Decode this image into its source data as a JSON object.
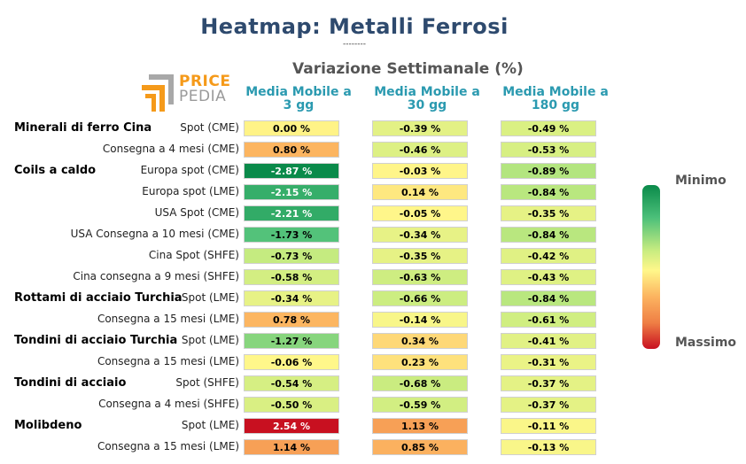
{
  "title": "Heatmap: Metalli Ferrosi",
  "title_separator": "--------",
  "subtitle": "Variazione Settimanale (%)",
  "logo": {
    "line1": "PRICE",
    "line2": "PEDIA"
  },
  "legend": {
    "top_label": "Minimo",
    "bottom_label": "Massimo"
  },
  "chart_data": {
    "type": "heatmap",
    "columns": [
      {
        "line1": "Media Mobile a",
        "line2": "3 gg"
      },
      {
        "line1": "Media Mobile a",
        "line2": "30 gg"
      },
      {
        "line1": "Media Mobile a",
        "line2": "180 gg"
      }
    ],
    "colorscale": {
      "low_color": "#0a8a4a",
      "mid_color": "#fff78a",
      "high_color": "#c81020"
    },
    "rows": [
      {
        "group": "Minerali di ferro Cina",
        "label": "Spot (CME)",
        "values": [
          0.0,
          -0.39,
          -0.49
        ],
        "texts": [
          "0.00 %",
          "-0.39 %",
          "-0.49 %"
        ]
      },
      {
        "group": "",
        "label": "Consegna a 4 mesi (CME)",
        "values": [
          0.8,
          -0.46,
          -0.53
        ],
        "texts": [
          "0.80 %",
          "-0.46 %",
          "-0.53 %"
        ]
      },
      {
        "group": "Coils a caldo",
        "label": "Europa spot (CME)",
        "values": [
          -2.87,
          -0.03,
          -0.89
        ],
        "texts": [
          "-2.87 %",
          "-0.03 %",
          "-0.89 %"
        ]
      },
      {
        "group": "",
        "label": "Europa spot (LME)",
        "values": [
          -2.15,
          0.14,
          -0.84
        ],
        "texts": [
          "-2.15 %",
          "0.14 %",
          "-0.84 %"
        ]
      },
      {
        "group": "",
        "label": "USA Spot (CME)",
        "values": [
          -2.21,
          -0.05,
          -0.35
        ],
        "texts": [
          "-2.21 %",
          "-0.05 %",
          "-0.35 %"
        ]
      },
      {
        "group": "",
        "label": "USA Consegna a 10 mesi (CME)",
        "values": [
          -1.73,
          -0.34,
          -0.84
        ],
        "texts": [
          "-1.73 %",
          "-0.34 %",
          "-0.84 %"
        ]
      },
      {
        "group": "",
        "label": "Cina Spot (SHFE)",
        "values": [
          -0.73,
          -0.35,
          -0.42
        ],
        "texts": [
          "-0.73 %",
          "-0.35 %",
          "-0.42 %"
        ]
      },
      {
        "group": "",
        "label": "Cina consegna a 9 mesi (SHFE)",
        "values": [
          -0.58,
          -0.63,
          -0.43
        ],
        "texts": [
          "-0.58 %",
          "-0.63 %",
          "-0.43 %"
        ]
      },
      {
        "group": "Rottami di acciaio Turchia",
        "label": "Spot (LME)",
        "values": [
          -0.34,
          -0.66,
          -0.84
        ],
        "texts": [
          "-0.34 %",
          "-0.66 %",
          "-0.84 %"
        ]
      },
      {
        "group": "",
        "label": "Consegna a 15 mesi (LME)",
        "values": [
          0.78,
          -0.14,
          -0.61
        ],
        "texts": [
          "0.78 %",
          "-0.14 %",
          "-0.61 %"
        ]
      },
      {
        "group": "Tondini di acciaio Turchia",
        "label": "Spot (LME)",
        "values": [
          -1.27,
          0.34,
          -0.41
        ],
        "texts": [
          "-1.27 %",
          "0.34 %",
          "-0.41 %"
        ]
      },
      {
        "group": "",
        "label": "Consegna a 15 mesi (LME)",
        "values": [
          -0.06,
          0.23,
          -0.31
        ],
        "texts": [
          "-0.06 %",
          "0.23 %",
          "-0.31 %"
        ]
      },
      {
        "group": "Tondini di acciaio",
        "label": "Spot (SHFE)",
        "values": [
          -0.54,
          -0.68,
          -0.37
        ],
        "texts": [
          "-0.54 %",
          "-0.68 %",
          "-0.37 %"
        ]
      },
      {
        "group": "",
        "label": "Consegna a 4 mesi (SHFE)",
        "values": [
          -0.5,
          -0.59,
          -0.37
        ],
        "texts": [
          "-0.50 %",
          "-0.59 %",
          "-0.37 %"
        ]
      },
      {
        "group": "Molibdeno",
        "label": "Spot (LME)",
        "values": [
          2.54,
          1.13,
          -0.11
        ],
        "texts": [
          "2.54 %",
          "1.13 %",
          "-0.11 %"
        ]
      },
      {
        "group": "",
        "label": "Consegna a 15 mesi (LME)",
        "values": [
          1.14,
          0.85,
          -0.13
        ],
        "texts": [
          "1.14 %",
          "0.85 %",
          "-0.13 %"
        ]
      }
    ]
  }
}
